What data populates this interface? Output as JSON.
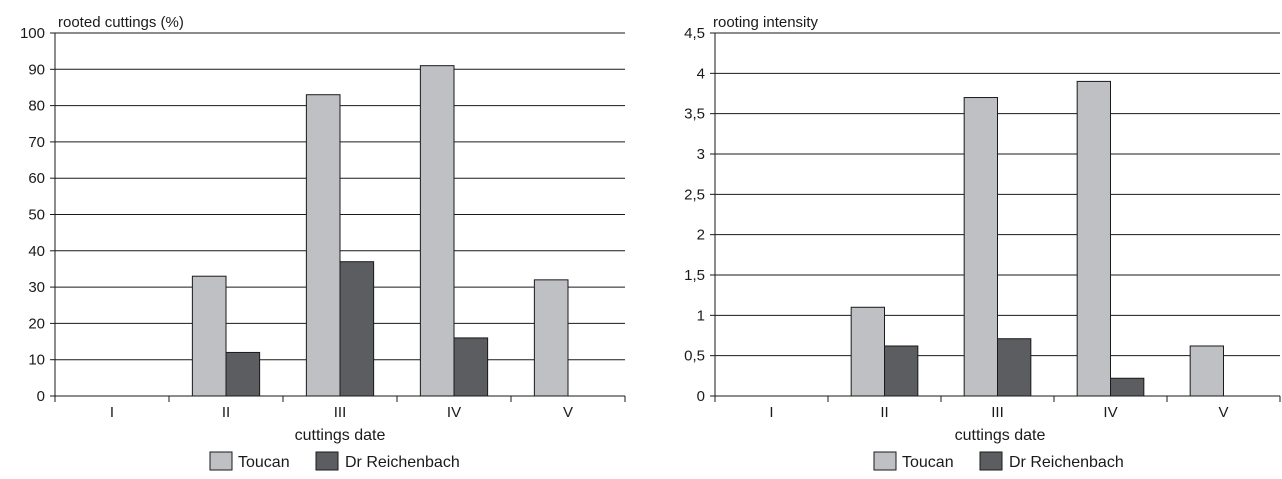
{
  "colors": {
    "toucan": "#bfc0c3",
    "reichenbach": "#5c5d60",
    "stroke": "#1a1a1a",
    "grid": "#1a1a1a"
  },
  "legend": {
    "series1": "Toucan",
    "series2": "Dr Reichenbach"
  },
  "chart_data": [
    {
      "type": "bar",
      "title": "",
      "ylabel": "rooted cuttings (%)",
      "xlabel": "cuttings date",
      "categories": [
        "I",
        "II",
        "III",
        "IV",
        "V"
      ],
      "ylim": [
        0,
        100
      ],
      "yticks": [
        "0",
        "10",
        "20",
        "30",
        "40",
        "50",
        "60",
        "70",
        "80",
        "90",
        "100"
      ],
      "ytick_values": [
        0,
        10,
        20,
        30,
        40,
        50,
        60,
        70,
        80,
        90,
        100
      ],
      "grid": true,
      "legend_position": "bottom",
      "series": [
        {
          "name": "Toucan",
          "values": [
            0,
            33,
            83,
            91,
            32
          ]
        },
        {
          "name": "Dr Reichenbach",
          "values": [
            0,
            12,
            37,
            16,
            0
          ]
        }
      ]
    },
    {
      "type": "bar",
      "title": "",
      "ylabel": "rooting intensity",
      "xlabel": "cuttings date",
      "categories": [
        "I",
        "II",
        "III",
        "IV",
        "V"
      ],
      "ylim": [
        0,
        4.5
      ],
      "yticks": [
        "0",
        "0,5",
        "1",
        "1,5",
        "2",
        "2,5",
        "3",
        "3,5",
        "4",
        "4,5"
      ],
      "ytick_values": [
        0,
        0.5,
        1,
        1.5,
        2,
        2.5,
        3,
        3.5,
        4,
        4.5
      ],
      "grid": true,
      "legend_position": "bottom",
      "series": [
        {
          "name": "Toucan",
          "values": [
            0,
            1.1,
            3.7,
            3.9,
            0.62
          ]
        },
        {
          "name": "Dr Reichenbach",
          "values": [
            0,
            0.62,
            0.71,
            0.22,
            0
          ]
        }
      ]
    }
  ]
}
